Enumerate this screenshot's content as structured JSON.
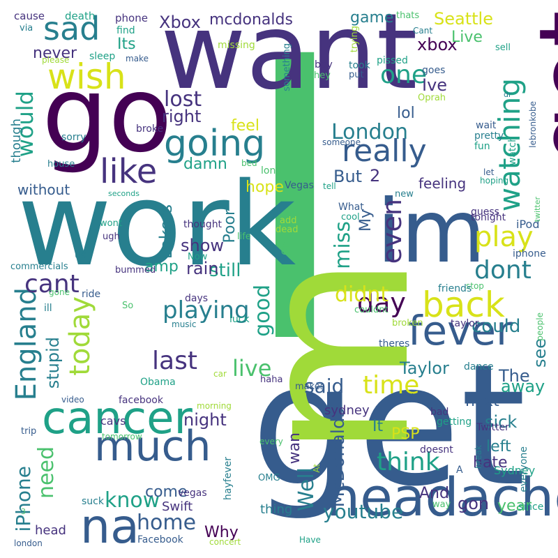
{
  "colors": {
    "bg": "#ffffff",
    "viridis": [
      "#440154",
      "#46337e",
      "#365c8d",
      "#277f8e",
      "#1fa187",
      "#4ac16d",
      "#a0da39",
      "#d8e219"
    ]
  },
  "words": [
    {
      "text": "I",
      "c": 5
    },
    {
      "text": "get",
      "c": 2
    },
    {
      "text": "work",
      "c": 3
    },
    {
      "text": "want",
      "c": 1
    },
    {
      "text": "go",
      "c": 0
    },
    {
      "text": "im",
      "c": 2
    },
    {
      "text": "got",
      "c": 0
    },
    {
      "text": "m",
      "c": 6
    },
    {
      "text": "headache",
      "c": 2
    },
    {
      "text": "cancer",
      "c": 4
    },
    {
      "text": "much",
      "c": 2
    },
    {
      "text": "na",
      "c": 2
    },
    {
      "text": "fever",
      "c": 2
    },
    {
      "text": "back",
      "c": 7
    },
    {
      "text": "going",
      "c": 3
    },
    {
      "text": "like",
      "c": 1
    },
    {
      "text": "wish",
      "c": 7
    },
    {
      "text": "sad",
      "c": 3
    },
    {
      "text": "really",
      "c": 2
    },
    {
      "text": "watching",
      "c": 4
    },
    {
      "text": "one",
      "c": 4
    },
    {
      "text": "even",
      "c": 1
    },
    {
      "text": "play",
      "c": 7
    },
    {
      "text": "dont",
      "c": 3
    },
    {
      "text": "day",
      "c": 0
    },
    {
      "text": "time",
      "c": 7
    },
    {
      "text": "England",
      "c": 3
    },
    {
      "text": "today",
      "c": 6
    },
    {
      "text": "cant",
      "c": 1
    },
    {
      "text": "last",
      "c": 1
    },
    {
      "text": "playing",
      "c": 3
    },
    {
      "text": "think",
      "c": 4
    },
    {
      "text": "live",
      "c": 5
    },
    {
      "text": "know",
      "c": 4
    },
    {
      "text": "home",
      "c": 2
    },
    {
      "text": "London",
      "c": 3
    },
    {
      "text": "miss",
      "c": 4
    },
    {
      "text": "good",
      "c": 4
    },
    {
      "text": "would",
      "c": 4
    },
    {
      "text": "lost",
      "c": 1
    },
    {
      "text": "iPhone",
      "c": 3
    },
    {
      "text": "need",
      "c": 5
    },
    {
      "text": "youtube",
      "c": 3
    },
    {
      "text": "Well",
      "c": 3
    },
    {
      "text": "McDonalds",
      "c": 2
    },
    {
      "text": "mcdonalds",
      "c": 1
    },
    {
      "text": "Xbox",
      "c": 1
    },
    {
      "text": "xbox",
      "c": 0
    },
    {
      "text": "Seattle",
      "c": 7
    },
    {
      "text": "game",
      "c": 3
    },
    {
      "text": "Live",
      "c": 5
    },
    {
      "text": "Its",
      "c": 4
    },
    {
      "text": "never",
      "c": 1
    },
    {
      "text": "right",
      "c": 1
    },
    {
      "text": "Ive",
      "c": 1
    },
    {
      "text": "lol",
      "c": 2
    },
    {
      "text": "But",
      "c": 2
    },
    {
      "text": "2",
      "c": 1
    },
    {
      "text": "hope",
      "c": 7
    },
    {
      "text": "feel",
      "c": 7
    },
    {
      "text": "damn",
      "c": 4
    },
    {
      "text": "Poor",
      "c": 3
    },
    {
      "text": "My",
      "c": 2
    },
    {
      "text": "Lakers",
      "c": 3
    },
    {
      "text": "show",
      "c": 1
    },
    {
      "text": "still",
      "c": 4
    },
    {
      "text": "rain",
      "c": 1
    },
    {
      "text": "amp",
      "c": 4
    },
    {
      "text": "didnt",
      "c": 7
    },
    {
      "text": "could",
      "c": 3
    },
    {
      "text": "see",
      "c": 3
    },
    {
      "text": "stupid",
      "c": 3
    },
    {
      "text": "said",
      "c": 2
    },
    {
      "text": "Taylor",
      "c": 3
    },
    {
      "text": "The",
      "c": 2
    },
    {
      "text": "away",
      "c": 4
    },
    {
      "text": "next",
      "c": 2
    },
    {
      "text": "night",
      "c": 1
    },
    {
      "text": "sick",
      "c": 3
    },
    {
      "text": "left",
      "c": 3
    },
    {
      "text": "It",
      "c": 3
    },
    {
      "text": "PSP",
      "c": 7
    },
    {
      "text": "hate",
      "c": 1
    },
    {
      "text": "wan",
      "c": 1
    },
    {
      "text": "And",
      "c": 1
    },
    {
      "text": "gon",
      "c": 1
    },
    {
      "text": "year",
      "c": 5
    },
    {
      "text": "come",
      "c": 2
    },
    {
      "text": "Why",
      "c": 0
    },
    {
      "text": "feeling",
      "c": 1
    },
    {
      "text": "without",
      "c": 2
    },
    {
      "text": "though",
      "c": 3
    },
    {
      "text": "sydney",
      "c": 1
    },
    {
      "text": "cavs",
      "c": 1
    },
    {
      "text": "facebook",
      "c": 1
    },
    {
      "text": "Twitter",
      "c": 1
    },
    {
      "text": "Sydney",
      "c": 4
    },
    {
      "text": "iPod",
      "c": 2
    },
    {
      "text": "tonight",
      "c": 1
    },
    {
      "text": "guess",
      "c": 1
    },
    {
      "text": "Swift",
      "c": 1
    },
    {
      "text": "head",
      "c": 1
    },
    {
      "text": "thing",
      "c": 3
    },
    {
      "text": "Facebook",
      "c": 2
    },
    {
      "text": "vegas",
      "c": 1
    },
    {
      "text": "suck",
      "c": 3
    },
    {
      "text": "video",
      "c": 2
    },
    {
      "text": "broke",
      "c": 1
    },
    {
      "text": "pretty",
      "c": 3
    },
    {
      "text": "fun",
      "c": 4
    },
    {
      "text": "wait",
      "c": 2
    },
    {
      "text": "watch",
      "c": 4
    },
    {
      "text": "let",
      "c": 2
    },
    {
      "text": "hoping",
      "c": 4
    },
    {
      "text": "lebronkobe",
      "c": 2
    },
    {
      "text": "twitter",
      "c": 5
    },
    {
      "text": "iphone",
      "c": 2
    },
    {
      "text": "stop",
      "c": 5
    },
    {
      "text": "friends",
      "c": 3
    },
    {
      "text": "people",
      "c": 5
    },
    {
      "text": "taylor",
      "c": 1
    },
    {
      "text": "broken",
      "c": 6
    },
    {
      "text": "theres",
      "c": 2
    },
    {
      "text": "couldnt",
      "c": 5
    },
    {
      "text": "luck",
      "c": 4
    },
    {
      "text": "music",
      "c": 3
    },
    {
      "text": "So",
      "c": 5
    },
    {
      "text": "days",
      "c": 1
    },
    {
      "text": "ride",
      "c": 2
    },
    {
      "text": "gone",
      "c": 5
    },
    {
      "text": "ill",
      "c": 3
    },
    {
      "text": "bummed",
      "c": 1
    },
    {
      "text": "commercials",
      "c": 3
    },
    {
      "text": "us",
      "c": 3
    },
    {
      "text": "ugh",
      "c": 1
    },
    {
      "text": "wont",
      "c": 4
    },
    {
      "text": "thought",
      "c": 1
    },
    {
      "text": "life",
      "c": 5
    },
    {
      "text": "Now",
      "c": 4
    },
    {
      "text": "Oh",
      "c": 5
    },
    {
      "text": "add",
      "c": 6
    },
    {
      "text": "dead",
      "c": 6
    },
    {
      "text": "Vegas",
      "c": 2
    },
    {
      "text": "What",
      "c": 2
    },
    {
      "text": "cool",
      "c": 4
    },
    {
      "text": "new",
      "c": 3
    },
    {
      "text": "tell",
      "c": 4
    },
    {
      "text": "long",
      "c": 5
    },
    {
      "text": "bed",
      "c": 5
    },
    {
      "text": "someone",
      "c": 2
    },
    {
      "text": "sorry",
      "c": 3
    },
    {
      "text": "house",
      "c": 3
    },
    {
      "text": "seconds",
      "c": 4
    },
    {
      "text": "cause",
      "c": 1
    },
    {
      "text": "death",
      "c": 4
    },
    {
      "text": "via",
      "c": 3
    },
    {
      "text": "please",
      "c": 6
    },
    {
      "text": "sleep",
      "c": 4
    },
    {
      "text": "make",
      "c": 2
    },
    {
      "text": "missing",
      "c": 6
    },
    {
      "text": "phone",
      "c": 1
    },
    {
      "text": "find",
      "c": 4
    },
    {
      "text": "thats",
      "c": 5
    },
    {
      "text": "Cant",
      "c": 3
    },
    {
      "text": "sell",
      "c": 4
    },
    {
      "text": "trying",
      "c": 6
    },
    {
      "text": "something",
      "c": 3
    },
    {
      "text": "boy",
      "c": 1
    },
    {
      "text": "took",
      "c": 3
    },
    {
      "text": "pissed",
      "c": 4
    },
    {
      "text": "hey",
      "c": 5
    },
    {
      "text": "put",
      "c": 2
    },
    {
      "text": "goes",
      "c": 2
    },
    {
      "text": "Oprah",
      "c": 6
    },
    {
      "text": "dr",
      "c": 3
    },
    {
      "text": "makes",
      "c": 2
    },
    {
      "text": "haha",
      "c": 1
    },
    {
      "text": "car",
      "c": 6
    },
    {
      "text": "Obama",
      "c": 4
    },
    {
      "text": "dance",
      "c": 3
    },
    {
      "text": "died",
      "c": 2
    },
    {
      "text": "bad",
      "c": 1
    },
    {
      "text": "getting",
      "c": 4
    },
    {
      "text": "doesnt",
      "c": 1
    },
    {
      "text": "hayfever",
      "c": 3
    },
    {
      "text": "OMG",
      "c": 3
    },
    {
      "text": "At",
      "c": 6
    },
    {
      "text": "A",
      "c": 2
    },
    {
      "text": "break",
      "c": 3
    },
    {
      "text": "everyone",
      "c": 3
    },
    {
      "text": "way",
      "c": 5
    },
    {
      "text": "since",
      "c": 4
    },
    {
      "text": "Have",
      "c": 4
    },
    {
      "text": "concert",
      "c": 6
    },
    {
      "text": "london",
      "c": 2
    },
    {
      "text": "3",
      "c": 5
    },
    {
      "text": "morning",
      "c": 6
    },
    {
      "text": "tomorrow",
      "c": 5
    },
    {
      "text": "trip",
      "c": 2
    },
    {
      "text": "every",
      "c": 5
    }
  ]
}
